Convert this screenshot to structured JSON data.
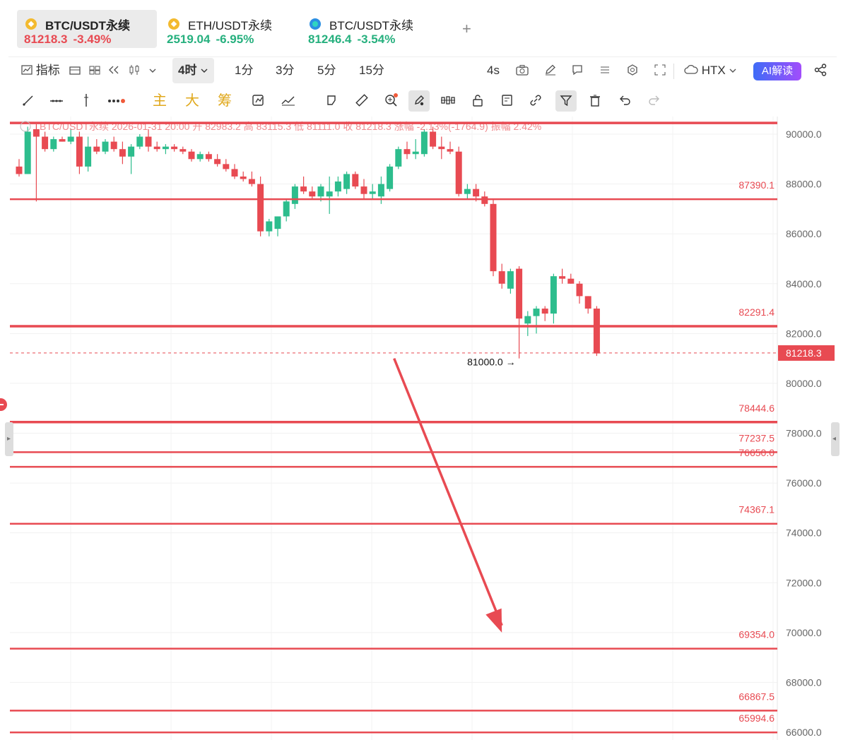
{
  "tabs": [
    {
      "name": "BTC/USDT永续",
      "price": "81218.3",
      "change": "-3.49%",
      "color": "#e84a52",
      "coin": "bnb-icon"
    },
    {
      "name": "ETH/USDT永续",
      "price": "2519.04",
      "change": "-6.95%",
      "color": "#26b07e",
      "coin": "bnb-icon"
    },
    {
      "name": "BTC/USDT永续",
      "price": "81246.4",
      "change": "-3.54%",
      "color": "#26b07e",
      "coin": "htx-icon"
    }
  ],
  "toolbar": {
    "indicator_label": "指标",
    "intervals": [
      "4时",
      "1分",
      "3分",
      "5分",
      "15分"
    ],
    "active_interval": "4时",
    "refresh": "4s",
    "exchange": "HTX",
    "ai_label": "AI解读"
  },
  "drawing_tools": {
    "main": "主",
    "big": "大",
    "chip": "筹"
  },
  "colors": {
    "up": "#2dbd8d",
    "down": "#e84a52",
    "accent": "#3f6cf7"
  },
  "chart_data": {
    "type": "candlestick",
    "symbol": "BTC/USDT永续",
    "info_bar": {
      "date": "2026-01-31 20:00",
      "open_label": "开",
      "open": "82983.2",
      "high_label": "高",
      "high": "83115.3",
      "low_label": "低",
      "low": "81111.0",
      "close_label": "收",
      "close": "81218.3",
      "change_label": "涨幅",
      "change": "-2.13%(-1764.9)",
      "amplitude_label": "振幅",
      "amplitude": "2.42%"
    },
    "ylim": [
      65800,
      90500
    ],
    "y_ticks": [
      90000,
      88000,
      86000,
      84000,
      82000,
      80000,
      78000,
      76000,
      74000,
      72000,
      70000,
      68000,
      66000
    ],
    "y_tick_labels": [
      "90000.0",
      "88000.0",
      "86000.0",
      "84000.0",
      "82000.0",
      "80000.0",
      "78000.0",
      "76000.0",
      "74000.0",
      "72000.0",
      "70000.0",
      "68000.0",
      "66000.0"
    ],
    "last_price": 81218.3,
    "last_price_label": "81218.3",
    "low_marker": {
      "value": 81000.0,
      "label": "81000.0 →"
    },
    "levels": [
      {
        "value": 90450,
        "label": ""
      },
      {
        "value": 87390.1,
        "label": "87390.1"
      },
      {
        "value": 82291.4,
        "label": "82291.4"
      },
      {
        "value": 78444.6,
        "label": "78444.6"
      },
      {
        "value": 77237.5,
        "label": "77237.5"
      },
      {
        "value": 76650.0,
        "label": "76650.0"
      },
      {
        "value": 74367.1,
        "label": "74367.1"
      },
      {
        "value": 69354.0,
        "label": "69354.0"
      },
      {
        "value": 66867.5,
        "label": "66867.5"
      },
      {
        "value": 65994.6,
        "label": "65994.6"
      }
    ],
    "arrow": {
      "from": [
        43.5,
        81000
      ],
      "to": [
        56,
        70000
      ]
    },
    "candles": [
      {
        "o": 88700,
        "h": 89000,
        "l": 88300,
        "c": 88400
      },
      {
        "o": 88400,
        "h": 90300,
        "l": 88400,
        "c": 90100
      },
      {
        "o": 90200,
        "h": 90400,
        "l": 87300,
        "c": 89900
      },
      {
        "o": 89900,
        "h": 90100,
        "l": 89300,
        "c": 89400
      },
      {
        "o": 89400,
        "h": 89900,
        "l": 89300,
        "c": 89800
      },
      {
        "o": 89800,
        "h": 89900,
        "l": 89700,
        "c": 89700
      },
      {
        "o": 89700,
        "h": 90200,
        "l": 89600,
        "c": 89900
      },
      {
        "o": 89900,
        "h": 90100,
        "l": 88400,
        "c": 88700
      },
      {
        "o": 88700,
        "h": 89900,
        "l": 88500,
        "c": 89500
      },
      {
        "o": 89500,
        "h": 89800,
        "l": 89200,
        "c": 89300
      },
      {
        "o": 89300,
        "h": 89800,
        "l": 89200,
        "c": 89700
      },
      {
        "o": 89700,
        "h": 89900,
        "l": 89300,
        "c": 89400
      },
      {
        "o": 89400,
        "h": 89700,
        "l": 88800,
        "c": 89100
      },
      {
        "o": 89100,
        "h": 89600,
        "l": 88400,
        "c": 89500
      },
      {
        "o": 89500,
        "h": 90000,
        "l": 89400,
        "c": 89900
      },
      {
        "o": 89900,
        "h": 90200,
        "l": 89300,
        "c": 89500
      },
      {
        "o": 89500,
        "h": 89700,
        "l": 89300,
        "c": 89400
      },
      {
        "o": 89400,
        "h": 89600,
        "l": 89200,
        "c": 89500
      },
      {
        "o": 89500,
        "h": 89600,
        "l": 89300,
        "c": 89400
      },
      {
        "o": 89400,
        "h": 89500,
        "l": 89200,
        "c": 89300
      },
      {
        "o": 89300,
        "h": 89400,
        "l": 88900,
        "c": 89000
      },
      {
        "o": 89000,
        "h": 89300,
        "l": 88900,
        "c": 89200
      },
      {
        "o": 89200,
        "h": 89300,
        "l": 88900,
        "c": 89000
      },
      {
        "o": 89000,
        "h": 89200,
        "l": 88700,
        "c": 88800
      },
      {
        "o": 88800,
        "h": 89000,
        "l": 88500,
        "c": 88600
      },
      {
        "o": 88600,
        "h": 88800,
        "l": 88200,
        "c": 88300
      },
      {
        "o": 88300,
        "h": 88500,
        "l": 88100,
        "c": 88200
      },
      {
        "o": 88200,
        "h": 88500,
        "l": 87900,
        "c": 88000
      },
      {
        "o": 88000,
        "h": 88300,
        "l": 85900,
        "c": 86100
      },
      {
        "o": 86100,
        "h": 86600,
        "l": 85900,
        "c": 86500
      },
      {
        "o": 86200,
        "h": 86700,
        "l": 85900,
        "c": 86700
      },
      {
        "o": 86700,
        "h": 87400,
        "l": 86500,
        "c": 87300
      },
      {
        "o": 87200,
        "h": 88000,
        "l": 87000,
        "c": 87900
      },
      {
        "o": 87900,
        "h": 88300,
        "l": 87600,
        "c": 87700
      },
      {
        "o": 87700,
        "h": 87900,
        "l": 87400,
        "c": 87500
      },
      {
        "o": 87500,
        "h": 88000,
        "l": 87300,
        "c": 87900
      },
      {
        "o": 87500,
        "h": 88300,
        "l": 86800,
        "c": 87700
      },
      {
        "o": 87700,
        "h": 88300,
        "l": 87500,
        "c": 88100
      },
      {
        "o": 87800,
        "h": 88500,
        "l": 87600,
        "c": 88400
      },
      {
        "o": 88400,
        "h": 88500,
        "l": 87800,
        "c": 87900
      },
      {
        "o": 87900,
        "h": 88200,
        "l": 87400,
        "c": 87600
      },
      {
        "o": 87600,
        "h": 88000,
        "l": 87400,
        "c": 87700
      },
      {
        "o": 87500,
        "h": 88300,
        "l": 87200,
        "c": 88000
      },
      {
        "o": 87800,
        "h": 88800,
        "l": 87700,
        "c": 88700
      },
      {
        "o": 88700,
        "h": 89500,
        "l": 88600,
        "c": 89400
      },
      {
        "o": 89400,
        "h": 89700,
        "l": 89000,
        "c": 89200
      },
      {
        "o": 89200,
        "h": 89800,
        "l": 89000,
        "c": 89300
      },
      {
        "o": 89200,
        "h": 90200,
        "l": 89100,
        "c": 90100
      },
      {
        "o": 90100,
        "h": 90300,
        "l": 89400,
        "c": 89500
      },
      {
        "o": 89500,
        "h": 89900,
        "l": 89000,
        "c": 89400
      },
      {
        "o": 89400,
        "h": 89700,
        "l": 89200,
        "c": 89300
      },
      {
        "o": 89300,
        "h": 89500,
        "l": 87500,
        "c": 87600
      },
      {
        "o": 87600,
        "h": 88000,
        "l": 87400,
        "c": 87800
      },
      {
        "o": 87800,
        "h": 88000,
        "l": 87300,
        "c": 87500
      },
      {
        "o": 87500,
        "h": 87700,
        "l": 87100,
        "c": 87200
      },
      {
        "o": 87200,
        "h": 87400,
        "l": 84300,
        "c": 84500
      },
      {
        "o": 84500,
        "h": 84800,
        "l": 83800,
        "c": 84000
      },
      {
        "o": 83800,
        "h": 84600,
        "l": 83600,
        "c": 84500
      },
      {
        "o": 84600,
        "h": 84700,
        "l": 81000,
        "c": 82600
      },
      {
        "o": 82400,
        "h": 82900,
        "l": 81900,
        "c": 82700
      },
      {
        "o": 82700,
        "h": 83100,
        "l": 82000,
        "c": 83000
      },
      {
        "o": 83000,
        "h": 83100,
        "l": 82500,
        "c": 82800
      },
      {
        "o": 82800,
        "h": 84400,
        "l": 82400,
        "c": 84300
      },
      {
        "o": 84300,
        "h": 84600,
        "l": 84000,
        "c": 84200
      },
      {
        "o": 84200,
        "h": 84400,
        "l": 84000,
        "c": 84000
      },
      {
        "o": 84000,
        "h": 84100,
        "l": 83200,
        "c": 83500
      },
      {
        "o": 83500,
        "h": 83500,
        "l": 82800,
        "c": 83000
      },
      {
        "o": 83000,
        "h": 83100,
        "l": 81100,
        "c": 81200
      }
    ]
  }
}
